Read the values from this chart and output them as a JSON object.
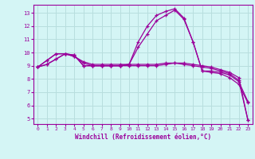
{
  "x": [
    0,
    1,
    2,
    3,
    4,
    5,
    6,
    7,
    8,
    9,
    10,
    11,
    12,
    13,
    14,
    15,
    16,
    17,
    18,
    19,
    20,
    21,
    22,
    23
  ],
  "line1": [
    8.9,
    9.4,
    9.9,
    9.9,
    9.8,
    9.0,
    9.0,
    9.0,
    9.0,
    9.0,
    9.1,
    10.8,
    12.0,
    12.8,
    13.1,
    13.3,
    12.6,
    10.8,
    8.6,
    8.6,
    8.5,
    8.3,
    7.8,
    6.3
  ],
  "line2": [
    8.9,
    9.4,
    9.9,
    9.9,
    9.8,
    9.0,
    9.0,
    9.0,
    9.0,
    9.0,
    9.1,
    10.4,
    11.4,
    12.4,
    12.8,
    13.2,
    12.5,
    10.8,
    8.6,
    8.5,
    8.4,
    8.1,
    7.6,
    6.2
  ],
  "line3": [
    8.9,
    9.1,
    9.5,
    9.9,
    9.7,
    9.3,
    9.1,
    9.1,
    9.1,
    9.1,
    9.1,
    9.1,
    9.1,
    9.1,
    9.2,
    9.2,
    9.2,
    9.1,
    9.0,
    8.9,
    8.7,
    8.5,
    8.1,
    4.9
  ],
  "line4": [
    8.9,
    9.1,
    9.5,
    9.9,
    9.7,
    9.2,
    9.0,
    9.0,
    9.0,
    9.0,
    9.0,
    9.0,
    9.0,
    9.0,
    9.1,
    9.2,
    9.1,
    9.0,
    8.9,
    8.8,
    8.6,
    8.4,
    7.9,
    4.9
  ],
  "color": "#9b009b",
  "bg_color": "#d4f5f5",
  "grid_color": "#b8dede",
  "ylim": [
    4.6,
    13.6
  ],
  "xlim": [
    -0.5,
    23.5
  ],
  "yticks": [
    5,
    6,
    7,
    8,
    9,
    10,
    11,
    12,
    13
  ],
  "xticks": [
    0,
    1,
    2,
    3,
    4,
    5,
    6,
    7,
    8,
    9,
    10,
    11,
    12,
    13,
    14,
    15,
    16,
    17,
    18,
    19,
    20,
    21,
    22,
    23
  ],
  "xlabel": "Windchill (Refroidissement éolien,°C)"
}
